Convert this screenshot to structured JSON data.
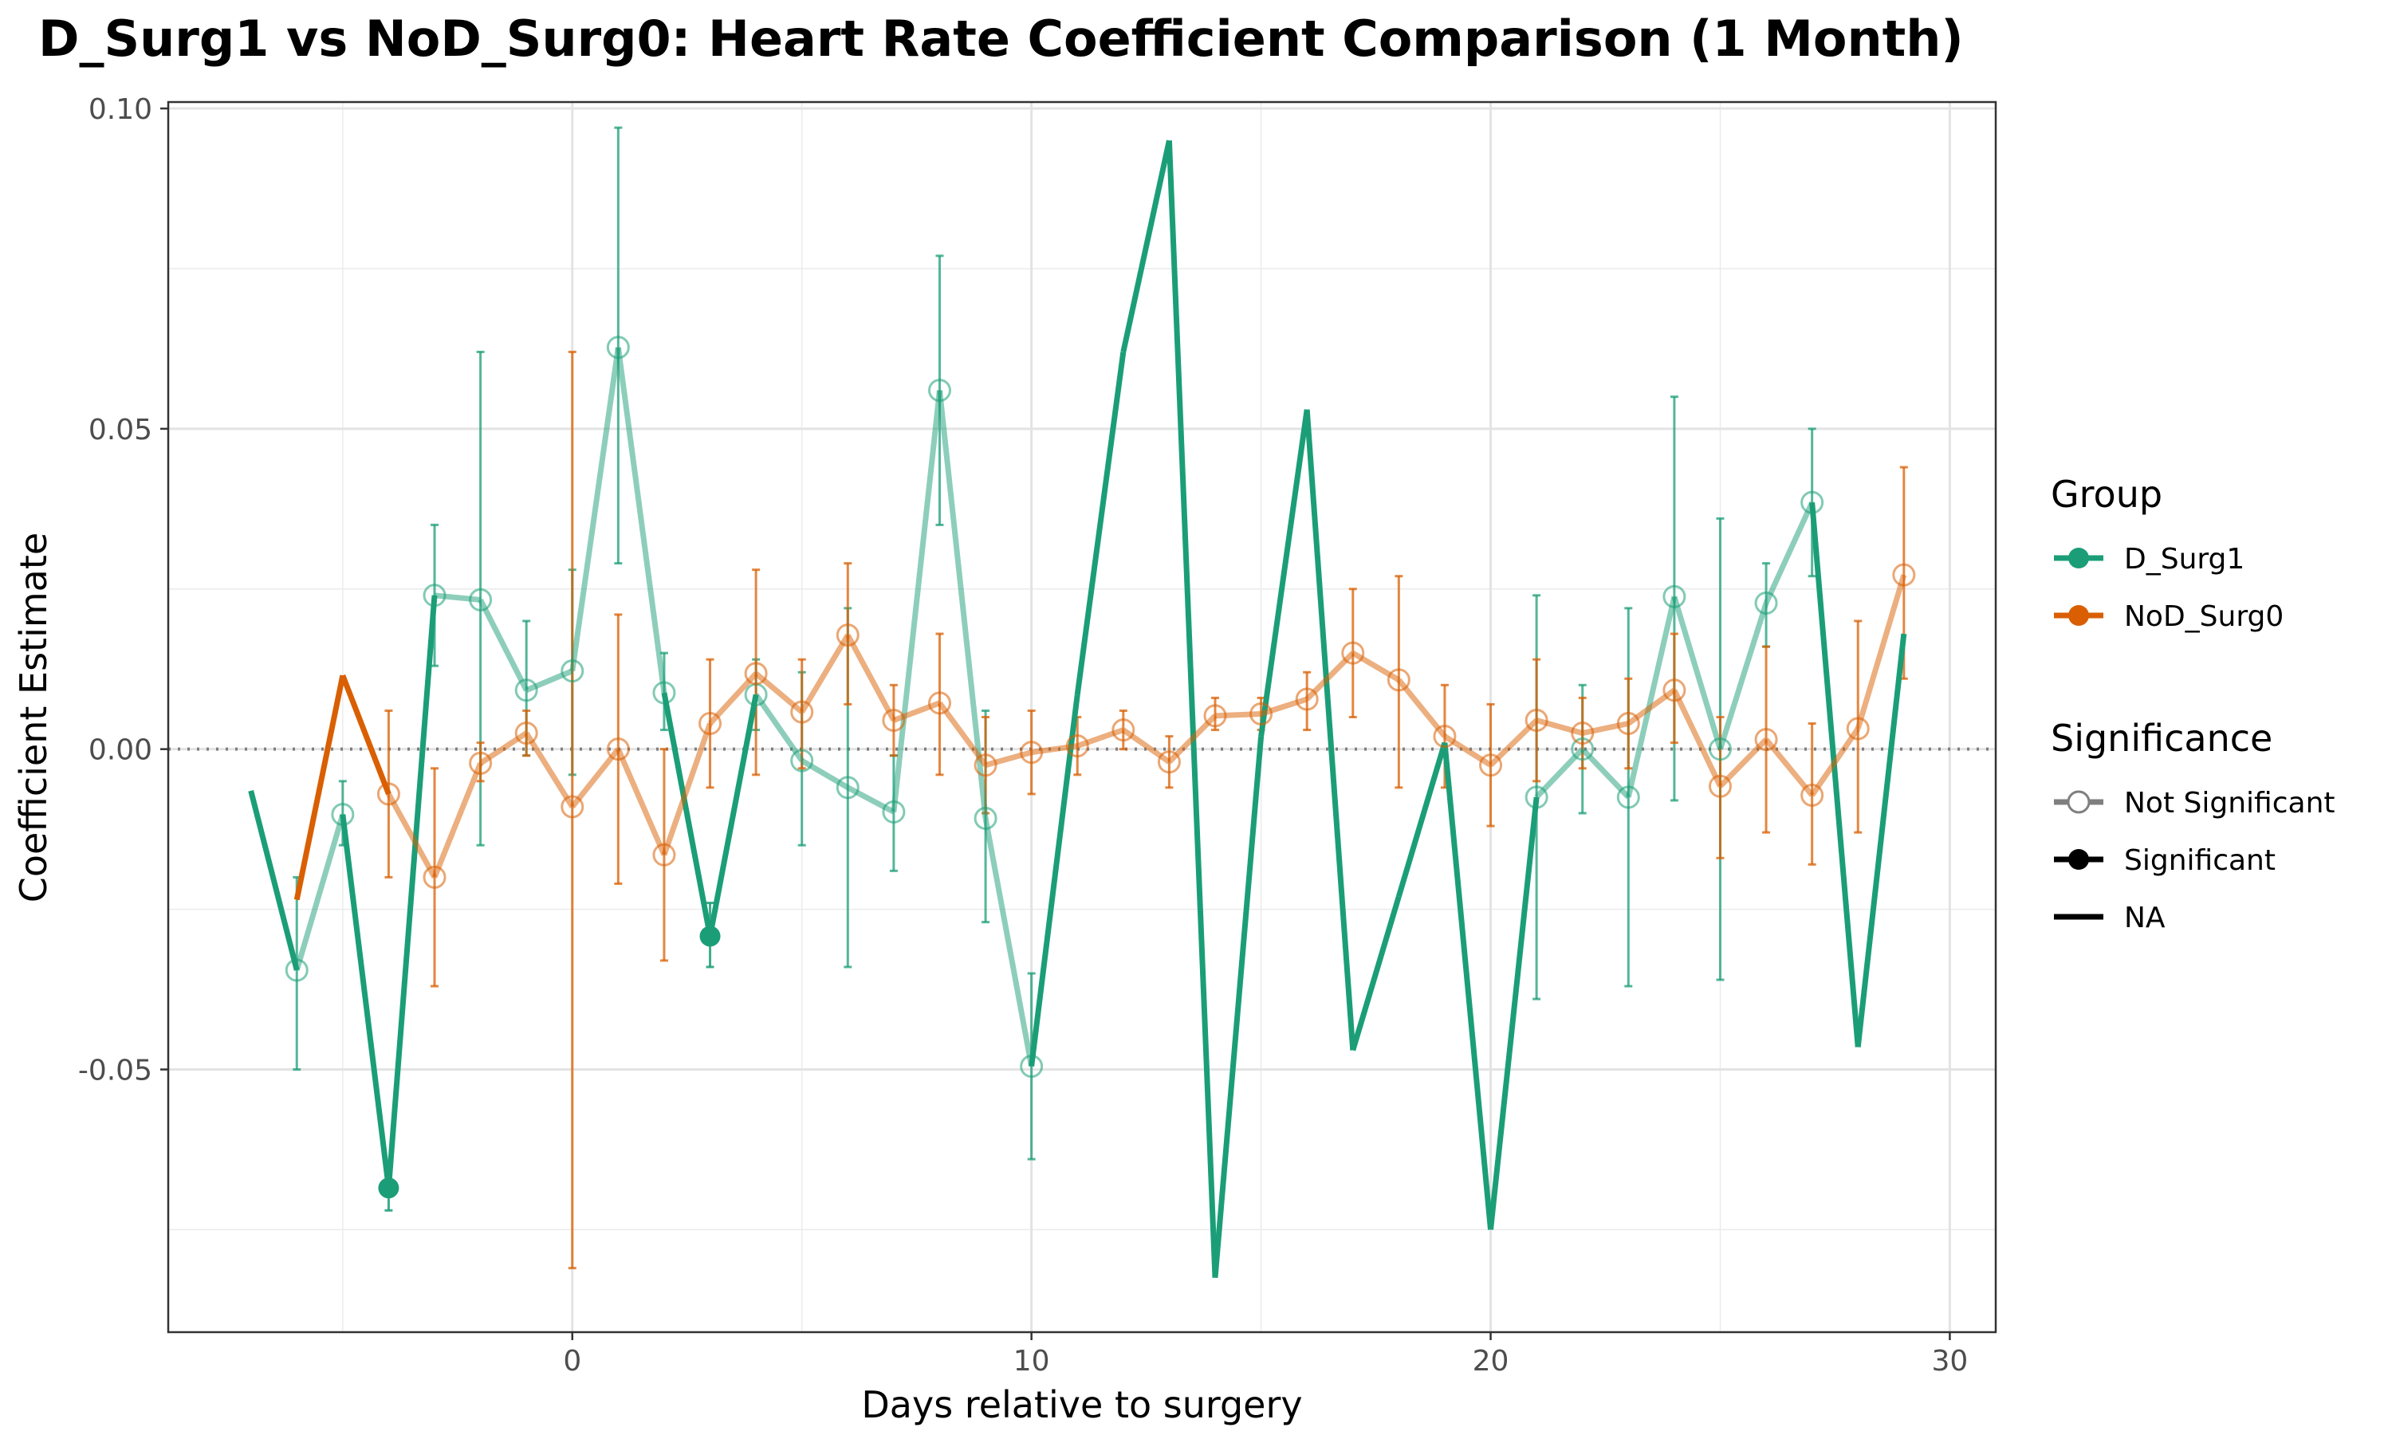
{
  "chart_data": {
    "type": "line",
    "title": "D_Surg1 vs NoD_Surg0: Heart Rate Coefficient Comparison (1 Month)",
    "xlabel": "Days relative to surgery",
    "ylabel": "Coefficient Estimate",
    "xlim": [
      -8.8,
      31.0
    ],
    "ylim": [
      -0.091,
      0.101
    ],
    "xticks": [
      0,
      10,
      20,
      30
    ],
    "xtick_labels": [
      "0",
      "10",
      "20",
      "30"
    ],
    "yticks": [
      -0.05,
      0.0,
      0.05,
      0.1
    ],
    "ytick_labels": [
      "-0.05",
      "0.00",
      "0.05",
      "0.10"
    ],
    "reference_line_y": 0,
    "grid": true,
    "legend_position": "right",
    "colors": {
      "D_Surg1": "#1b9e77",
      "NoD_Surg0": "#d95f02"
    },
    "legend": {
      "group_title": "Group",
      "group_items": [
        {
          "label": "D_Surg1",
          "color": "#1b9e77"
        },
        {
          "label": "NoD_Surg0",
          "color": "#d95f02"
        }
      ],
      "significance_title": "Significance",
      "significance_items": [
        {
          "label": "Not Significant",
          "style": "open"
        },
        {
          "label": "Significant",
          "style": "filled"
        },
        {
          "label": "NA",
          "style": "line"
        }
      ]
    },
    "series": [
      {
        "name": "D_Surg1",
        "color": "#1b9e77",
        "points": [
          {
            "x": -7,
            "y": -0.0065
          },
          {
            "x": -6,
            "y": -0.0345,
            "lo": -0.05,
            "hi": -0.02,
            "sig": false
          },
          {
            "x": -5,
            "y": -0.0102,
            "lo": -0.015,
            "hi": -0.005,
            "sig": false
          },
          {
            "x": -4,
            "y": -0.0685,
            "lo": -0.072,
            "hi": -0.065,
            "sig": true
          },
          {
            "x": -3,
            "y": 0.024,
            "lo": 0.013,
            "hi": 0.035,
            "sig": false
          },
          {
            "x": -2,
            "y": 0.0233,
            "lo": -0.015,
            "hi": 0.062,
            "sig": false
          },
          {
            "x": -1,
            "y": 0.0092,
            "lo": -0.001,
            "hi": 0.02,
            "sig": false
          },
          {
            "x": 0,
            "y": 0.0122,
            "lo": -0.004,
            "hi": 0.028,
            "sig": false
          },
          {
            "x": 1,
            "y": 0.0627,
            "lo": 0.029,
            "hi": 0.097,
            "sig": false
          },
          {
            "x": 2,
            "y": 0.0088,
            "lo": 0.003,
            "hi": 0.015,
            "sig": false
          },
          {
            "x": 3,
            "y": -0.0292,
            "lo": -0.034,
            "hi": -0.024,
            "sig": true
          },
          {
            "x": 4,
            "y": 0.0085,
            "lo": 0.003,
            "hi": 0.014,
            "sig": false
          },
          {
            "x": 5,
            "y": -0.0018,
            "lo": -0.015,
            "hi": 0.012,
            "sig": false
          },
          {
            "x": 6,
            "y": -0.006,
            "lo": -0.034,
            "hi": 0.022,
            "sig": false
          },
          {
            "x": 7,
            "y": -0.0098,
            "lo": -0.019,
            "hi": -0.001,
            "sig": false
          },
          {
            "x": 8,
            "y": 0.056,
            "lo": 0.035,
            "hi": 0.077,
            "sig": false
          },
          {
            "x": 9,
            "y": -0.0108,
            "lo": -0.027,
            "hi": 0.006,
            "sig": false
          },
          {
            "x": 10,
            "y": -0.0495,
            "lo": -0.064,
            "hi": -0.035,
            "sig": false
          },
          {
            "x": 11,
            "y": 0.0085
          },
          {
            "x": 12,
            "y": 0.062
          },
          {
            "x": 13,
            "y": 0.095
          },
          {
            "x": 14,
            "y": -0.0825
          },
          {
            "x": 15,
            "y": 0.002
          },
          {
            "x": 16,
            "y": 0.053
          },
          {
            "x": 17,
            "y": -0.047
          },
          {
            "x": 18,
            "y": -0.023
          },
          {
            "x": 19,
            "y": 0.001
          },
          {
            "x": 20,
            "y": -0.075
          },
          {
            "x": 21,
            "y": -0.0075,
            "lo": -0.039,
            "hi": 0.024,
            "sig": false
          },
          {
            "x": 22,
            "y": 0.0,
            "lo": -0.01,
            "hi": 0.01,
            "sig": false
          },
          {
            "x": 23,
            "y": -0.0075,
            "lo": -0.037,
            "hi": 0.022,
            "sig": false
          },
          {
            "x": 24,
            "y": 0.0238,
            "lo": -0.008,
            "hi": 0.055,
            "sig": false
          },
          {
            "x": 25,
            "y": 0.0,
            "lo": -0.036,
            "hi": 0.036,
            "sig": false
          },
          {
            "x": 26,
            "y": 0.0228,
            "lo": 0.016,
            "hi": 0.029,
            "sig": false
          },
          {
            "x": 27,
            "y": 0.0385,
            "lo": 0.027,
            "hi": 0.05,
            "sig": false
          },
          {
            "x": 28,
            "y": -0.0465
          },
          {
            "x": 29,
            "y": 0.018
          }
        ]
      },
      {
        "name": "NoD_Surg0",
        "color": "#d95f02",
        "points": [
          {
            "x": -6,
            "y": -0.0235
          },
          {
            "x": -5,
            "y": 0.0115
          },
          {
            "x": -4,
            "y": -0.007,
            "lo": -0.02,
            "hi": 0.006,
            "sig": false
          },
          {
            "x": -3,
            "y": -0.02,
            "lo": -0.037,
            "hi": -0.003,
            "sig": false
          },
          {
            "x": -2,
            "y": -0.0022,
            "lo": -0.005,
            "hi": 0.001,
            "sig": false
          },
          {
            "x": -1,
            "y": 0.0025,
            "lo": -0.001,
            "hi": 0.006,
            "sig": false
          },
          {
            "x": 0,
            "y": -0.009,
            "lo": -0.081,
            "hi": 0.062,
            "sig": false
          },
          {
            "x": 1,
            "y": 0.0,
            "lo": -0.021,
            "hi": 0.021,
            "sig": false
          },
          {
            "x": 2,
            "y": -0.0165,
            "lo": -0.033,
            "hi": 0.0,
            "sig": false
          },
          {
            "x": 3,
            "y": 0.004,
            "lo": -0.006,
            "hi": 0.014,
            "sig": false
          },
          {
            "x": 4,
            "y": 0.0118,
            "lo": -0.004,
            "hi": 0.028,
            "sig": false
          },
          {
            "x": 5,
            "y": 0.0058,
            "lo": -0.003,
            "hi": 0.014,
            "sig": false
          },
          {
            "x": 6,
            "y": 0.0178,
            "lo": 0.007,
            "hi": 0.029,
            "sig": false
          },
          {
            "x": 7,
            "y": 0.0045,
            "lo": -0.001,
            "hi": 0.01,
            "sig": false
          },
          {
            "x": 8,
            "y": 0.0072,
            "lo": -0.004,
            "hi": 0.018,
            "sig": false
          },
          {
            "x": 9,
            "y": -0.0025,
            "lo": -0.01,
            "hi": 0.005,
            "sig": false
          },
          {
            "x": 10,
            "y": -0.0005,
            "lo": -0.007,
            "hi": 0.006,
            "sig": false
          },
          {
            "x": 11,
            "y": 0.0005,
            "lo": -0.004,
            "hi": 0.005,
            "sig": false
          },
          {
            "x": 12,
            "y": 0.003,
            "lo": 0.0,
            "hi": 0.006,
            "sig": false
          },
          {
            "x": 13,
            "y": -0.002,
            "lo": -0.006,
            "hi": 0.002,
            "sig": false
          },
          {
            "x": 14,
            "y": 0.0052,
            "lo": 0.003,
            "hi": 0.008,
            "sig": false
          },
          {
            "x": 15,
            "y": 0.0055,
            "lo": 0.003,
            "hi": 0.008,
            "sig": false
          },
          {
            "x": 16,
            "y": 0.0078,
            "lo": 0.003,
            "hi": 0.012,
            "sig": false
          },
          {
            "x": 17,
            "y": 0.015,
            "lo": 0.005,
            "hi": 0.025,
            "sig": false
          },
          {
            "x": 18,
            "y": 0.0108,
            "lo": -0.006,
            "hi": 0.027,
            "sig": false
          },
          {
            "x": 19,
            "y": 0.002,
            "lo": -0.006,
            "hi": 0.01,
            "sig": false
          },
          {
            "x": 20,
            "y": -0.0025,
            "lo": -0.012,
            "hi": 0.007,
            "sig": false
          },
          {
            "x": 21,
            "y": 0.0045,
            "lo": -0.005,
            "hi": 0.014,
            "sig": false
          },
          {
            "x": 22,
            "y": 0.0025,
            "lo": -0.003,
            "hi": 0.008,
            "sig": false
          },
          {
            "x": 23,
            "y": 0.004,
            "lo": -0.003,
            "hi": 0.011,
            "sig": false
          },
          {
            "x": 24,
            "y": 0.0092,
            "lo": 0.001,
            "hi": 0.018,
            "sig": false
          },
          {
            "x": 25,
            "y": -0.0058,
            "lo": -0.017,
            "hi": 0.005,
            "sig": false
          },
          {
            "x": 26,
            "y": 0.0015,
            "lo": -0.013,
            "hi": 0.016,
            "sig": false
          },
          {
            "x": 27,
            "y": -0.0072,
            "lo": -0.018,
            "hi": 0.004,
            "sig": false
          },
          {
            "x": 28,
            "y": 0.0032,
            "lo": -0.013,
            "hi": 0.02,
            "sig": false
          },
          {
            "x": 29,
            "y": 0.0272,
            "lo": 0.011,
            "hi": 0.044,
            "sig": false
          }
        ]
      }
    ]
  }
}
